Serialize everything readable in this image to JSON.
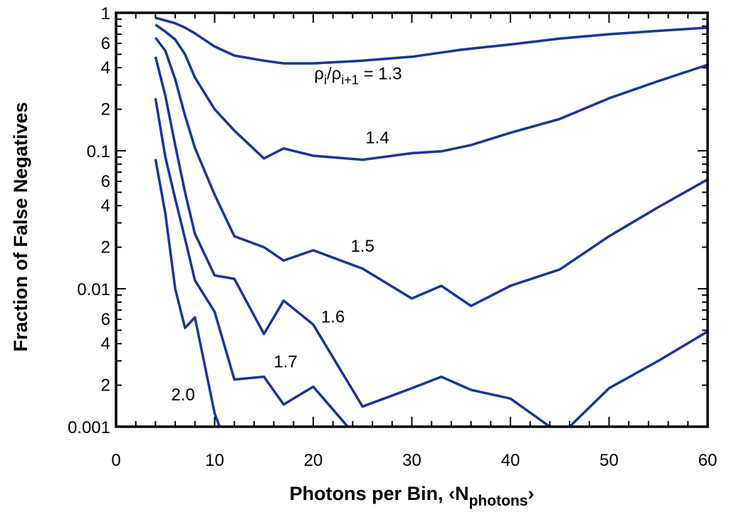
{
  "chart_data": {
    "type": "line",
    "title": "",
    "xlabel": "Photons per Bin, ‹N",
    "xlabel_sub": "photons",
    "xlabel_end": "›",
    "ylabel": "Fraction of False Negatives",
    "xlim": [
      0,
      60
    ],
    "ylim": [
      0.001,
      1
    ],
    "yscale": "log",
    "grid": false,
    "line_color": "#1a3399",
    "x_ticks": [
      0,
      10,
      20,
      30,
      40,
      50,
      60
    ],
    "x_tick_labels": [
      "0",
      "10",
      "20",
      "30",
      "40",
      "50",
      "60"
    ],
    "y_major_ticks": [
      0.001,
      0.01,
      0.1,
      1
    ],
    "y_major_labels": [
      "0.001",
      "0.01",
      "0.1",
      "1"
    ],
    "y_minor_labels": [
      {
        "value": 0.002,
        "label": "2"
      },
      {
        "value": 0.004,
        "label": "4"
      },
      {
        "value": 0.006,
        "label": "6"
      },
      {
        "value": 0.02,
        "label": "2"
      },
      {
        "value": 0.04,
        "label": "4"
      },
      {
        "value": 0.06,
        "label": "6"
      },
      {
        "value": 0.2,
        "label": "2"
      },
      {
        "value": 0.4,
        "label": "4"
      },
      {
        "value": 0.6,
        "label": "6"
      }
    ],
    "series_label_prefix": "ρ",
    "series_label_sub1": "i",
    "series_label_mid": "/ρ",
    "series_label_sub2": "i+1",
    "series_label_eq": " = ",
    "series": [
      {
        "name": "1.3",
        "label_pos": {
          "x": 29,
          "y": 0.33
        },
        "points": [
          [
            4,
            0.92
          ],
          [
            5,
            0.88
          ],
          [
            6,
            0.84
          ],
          [
            7,
            0.78
          ],
          [
            8,
            0.71
          ],
          [
            10,
            0.57
          ],
          [
            12,
            0.49
          ],
          [
            15,
            0.45
          ],
          [
            17,
            0.43
          ],
          [
            20,
            0.43
          ],
          [
            25,
            0.45
          ],
          [
            30,
            0.48
          ],
          [
            35,
            0.54
          ],
          [
            40,
            0.59
          ],
          [
            45,
            0.65
          ],
          [
            50,
            0.7
          ],
          [
            55,
            0.74
          ],
          [
            60,
            0.78
          ]
        ]
      },
      {
        "name": "1.4",
        "label_pos": {
          "x": 26.5,
          "y": 0.113
        },
        "points": [
          [
            4,
            0.82
          ],
          [
            5,
            0.73
          ],
          [
            6,
            0.64
          ],
          [
            7,
            0.5
          ],
          [
            8,
            0.34
          ],
          [
            10,
            0.2
          ],
          [
            12,
            0.14
          ],
          [
            15,
            0.088
          ],
          [
            17,
            0.104
          ],
          [
            20,
            0.092
          ],
          [
            25,
            0.086
          ],
          [
            30,
            0.096
          ],
          [
            33,
            0.099
          ],
          [
            36,
            0.11
          ],
          [
            40,
            0.135
          ],
          [
            45,
            0.17
          ],
          [
            50,
            0.24
          ],
          [
            55,
            0.32
          ],
          [
            60,
            0.42
          ]
        ]
      },
      {
        "name": "1.5",
        "label_pos": {
          "x": 25,
          "y": 0.0185
        },
        "points": [
          [
            4,
            0.66
          ],
          [
            5,
            0.53
          ],
          [
            6,
            0.33
          ],
          [
            7,
            0.18
          ],
          [
            8,
            0.105
          ],
          [
            10,
            0.048
          ],
          [
            12,
            0.024
          ],
          [
            15,
            0.02
          ],
          [
            17,
            0.016
          ],
          [
            20,
            0.019
          ],
          [
            25,
            0.014
          ],
          [
            30,
            0.0085
          ],
          [
            33,
            0.0105
          ],
          [
            36,
            0.0075
          ],
          [
            40,
            0.0105
          ],
          [
            45,
            0.0138
          ],
          [
            50,
            0.024
          ],
          [
            55,
            0.039
          ],
          [
            60,
            0.062
          ]
        ]
      },
      {
        "name": "1.6",
        "label_pos": {
          "x": 22,
          "y": 0.0057
        },
        "points": [
          [
            4,
            0.48
          ],
          [
            5,
            0.25
          ],
          [
            6,
            0.11
          ],
          [
            7,
            0.05
          ],
          [
            8,
            0.025
          ],
          [
            10,
            0.0125
          ],
          [
            12,
            0.0118
          ],
          [
            15,
            0.0047
          ],
          [
            17,
            0.0082
          ],
          [
            20,
            0.0055
          ],
          [
            25,
            0.0014
          ],
          [
            30,
            0.0019
          ],
          [
            33,
            0.0023
          ],
          [
            36,
            0.00185
          ],
          [
            40,
            0.0016
          ],
          [
            44,
            0.001
          ],
          [
            46,
            0.001
          ],
          [
            50,
            0.0019
          ],
          [
            55,
            0.003
          ],
          [
            60,
            0.0049
          ]
        ]
      },
      {
        "name": "1.7",
        "label_pos": {
          "x": 17.2,
          "y": 0.0027
        },
        "points": [
          [
            4,
            0.24
          ],
          [
            5,
            0.09
          ],
          [
            6,
            0.045
          ],
          [
            7,
            0.023
          ],
          [
            8,
            0.0115
          ],
          [
            10,
            0.0068
          ],
          [
            12,
            0.0022
          ],
          [
            15,
            0.0023
          ],
          [
            17,
            0.00145
          ],
          [
            20,
            0.00195
          ],
          [
            23.5,
            0.001
          ]
        ]
      },
      {
        "name": "2.0",
        "label_pos": {
          "x": 6.8,
          "y": 0.00155
        },
        "points": [
          [
            4,
            0.087
          ],
          [
            5,
            0.035
          ],
          [
            6,
            0.01
          ],
          [
            7,
            0.0052
          ],
          [
            8,
            0.0062
          ],
          [
            10,
            0.00125
          ],
          [
            10.5,
            0.001
          ]
        ]
      }
    ]
  }
}
